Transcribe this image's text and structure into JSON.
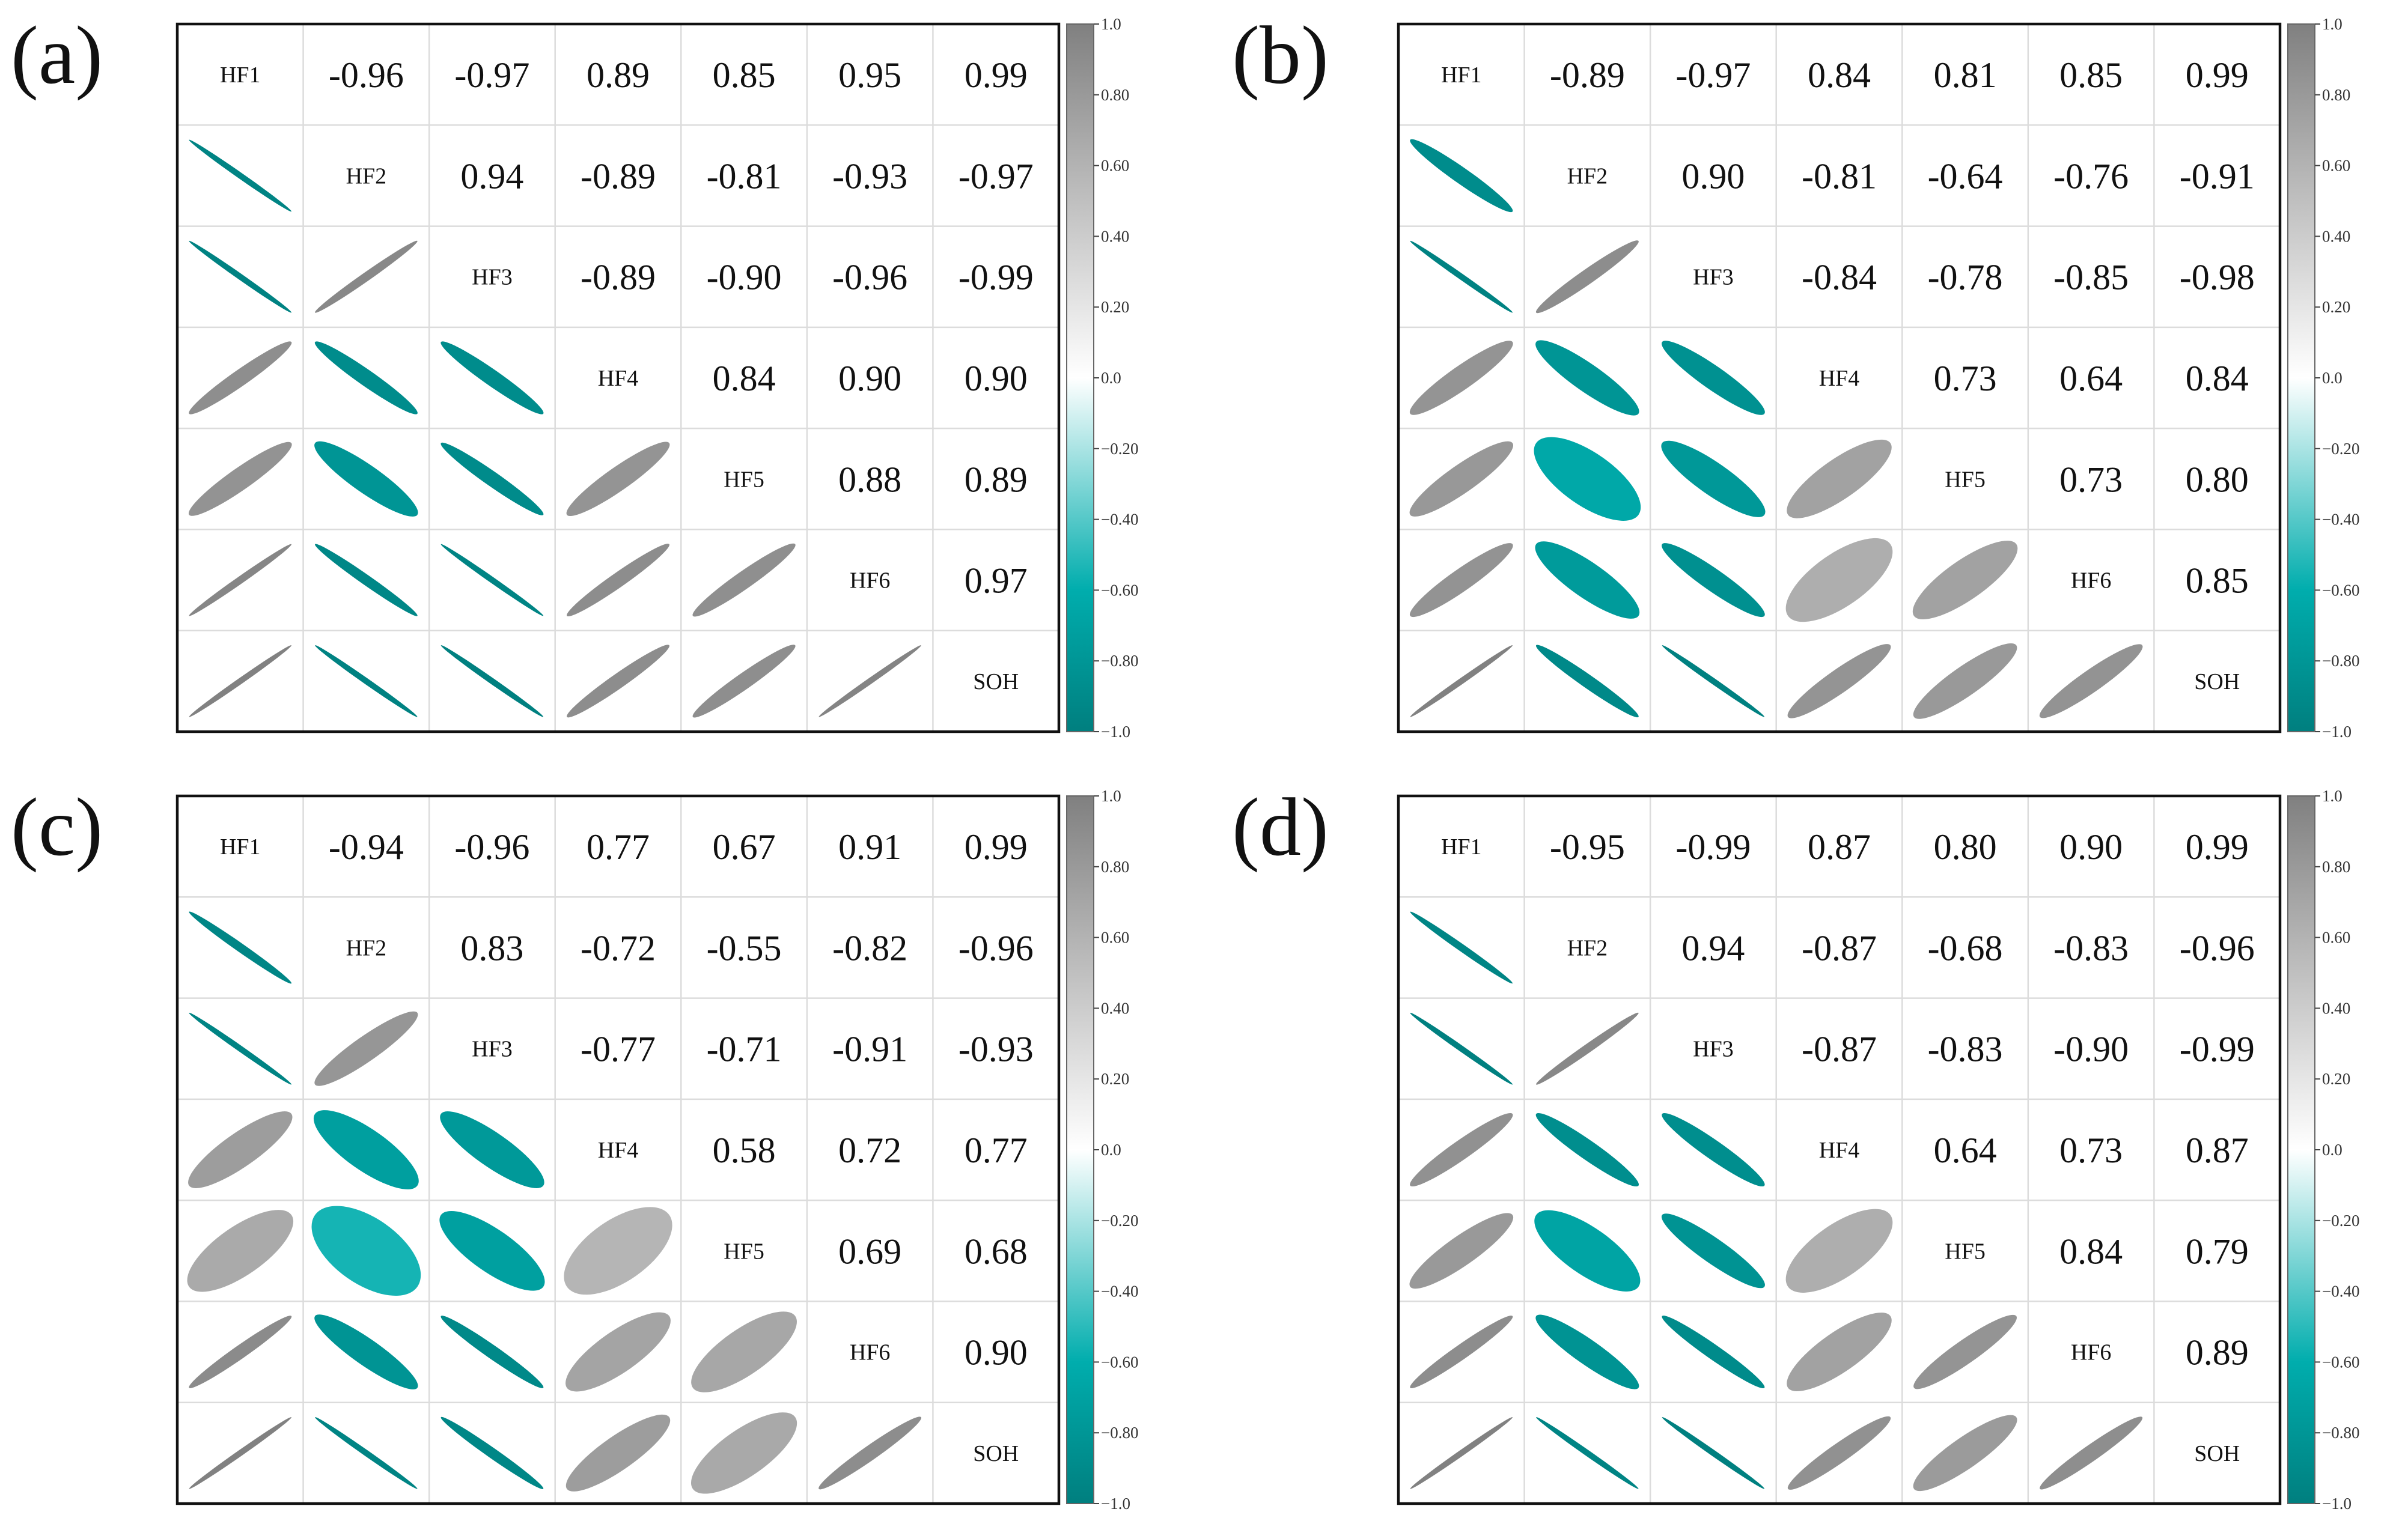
{
  "figure": {
    "description_colors": {
      "positive": "#808080",
      "neutral": "#ffffff",
      "negative": "#007f7f",
      "mid_negative": "#00adad"
    }
  },
  "chart_data": [
    {
      "type": "heatmap",
      "panel_label": "(a)",
      "variables": [
        "HF1",
        "HF2",
        "HF3",
        "HF4",
        "HF5",
        "HF6",
        "SOH"
      ],
      "matrix": [
        [
          1,
          -0.96,
          -0.97,
          0.89,
          0.85,
          0.95,
          0.99
        ],
        [
          -0.96,
          1,
          0.94,
          -0.89,
          -0.81,
          -0.93,
          -0.97
        ],
        [
          -0.97,
          0.94,
          1,
          -0.89,
          -0.9,
          -0.96,
          -0.99
        ],
        [
          0.89,
          -0.89,
          -0.89,
          1,
          0.84,
          0.9,
          0.9
        ],
        [
          0.85,
          -0.81,
          -0.9,
          0.84,
          1,
          0.88,
          0.89
        ],
        [
          0.95,
          -0.93,
          -0.96,
          0.9,
          0.88,
          1,
          0.97
        ],
        [
          0.99,
          -0.97,
          -0.99,
          0.9,
          0.89,
          0.97,
          1
        ]
      ],
      "colorbar": {
        "range": [
          -1.0,
          1.0
        ],
        "ticks": [
          "1.0",
          "0.80",
          "0.60",
          "0.40",
          "0.20",
          "0.0",
          "−0.20",
          "−0.40",
          "−0.60",
          "−0.80",
          "−1.0"
        ]
      }
    },
    {
      "type": "heatmap",
      "panel_label": "(b)",
      "variables": [
        "HF1",
        "HF2",
        "HF3",
        "HF4",
        "HF5",
        "HF6",
        "SOH"
      ],
      "matrix": [
        [
          1,
          -0.89,
          -0.97,
          0.84,
          0.81,
          0.85,
          0.99
        ],
        [
          -0.89,
          1,
          0.9,
          -0.81,
          -0.64,
          -0.76,
          -0.91
        ],
        [
          -0.97,
          0.9,
          1,
          -0.84,
          -0.78,
          -0.85,
          -0.98
        ],
        [
          0.84,
          -0.81,
          -0.84,
          1,
          0.73,
          0.64,
          0.84
        ],
        [
          0.81,
          -0.64,
          -0.78,
          0.73,
          1,
          0.73,
          0.8
        ],
        [
          0.85,
          -0.76,
          -0.85,
          0.64,
          0.73,
          1,
          0.85
        ],
        [
          0.99,
          -0.91,
          -0.98,
          0.84,
          0.8,
          0.85,
          1
        ]
      ],
      "colorbar": {
        "range": [
          -1.0,
          1.0
        ],
        "ticks": [
          "1.0",
          "0.80",
          "0.60",
          "0.40",
          "0.20",
          "0.0",
          "−0.20",
          "−0.40",
          "−0.60",
          "−0.80",
          "−1.0"
        ]
      }
    },
    {
      "type": "heatmap",
      "panel_label": "(c)",
      "variables": [
        "HF1",
        "HF2",
        "HF3",
        "HF4",
        "HF5",
        "HF6",
        "SOH"
      ],
      "matrix": [
        [
          1,
          -0.94,
          -0.96,
          0.77,
          0.67,
          0.91,
          0.99
        ],
        [
          -0.94,
          1,
          0.83,
          -0.72,
          -0.55,
          -0.82,
          -0.96
        ],
        [
          -0.96,
          0.83,
          1,
          -0.77,
          -0.71,
          -0.91,
          -0.93
        ],
        [
          0.77,
          -0.72,
          -0.77,
          1,
          0.58,
          0.72,
          0.77
        ],
        [
          0.67,
          -0.55,
          -0.71,
          0.58,
          1,
          0.69,
          0.68
        ],
        [
          0.91,
          -0.82,
          -0.91,
          0.72,
          0.69,
          1,
          0.9
        ],
        [
          0.99,
          -0.96,
          -0.93,
          0.77,
          0.68,
          0.9,
          1
        ]
      ],
      "colorbar": {
        "range": [
          -1.0,
          1.0
        ],
        "ticks": [
          "1.0",
          "0.80",
          "0.60",
          "0.40",
          "0.20",
          "0.0",
          "−0.20",
          "−0.40",
          "−0.60",
          "−0.80",
          "−1.0"
        ]
      }
    },
    {
      "type": "heatmap",
      "panel_label": "(d)",
      "variables": [
        "HF1",
        "HF2",
        "HF3",
        "HF4",
        "HF5",
        "HF6",
        "SOH"
      ],
      "matrix": [
        [
          1,
          -0.95,
          -0.99,
          0.87,
          0.8,
          0.9,
          0.99
        ],
        [
          -0.95,
          1,
          0.94,
          -0.87,
          -0.68,
          -0.83,
          -0.96
        ],
        [
          -0.99,
          0.94,
          1,
          -0.87,
          -0.83,
          -0.9,
          -0.99
        ],
        [
          0.87,
          -0.87,
          -0.87,
          1,
          0.64,
          0.73,
          0.87
        ],
        [
          0.8,
          -0.68,
          -0.83,
          0.64,
          1,
          0.84,
          0.79
        ],
        [
          0.9,
          -0.83,
          -0.9,
          0.73,
          0.84,
          1,
          0.89
        ],
        [
          0.99,
          -0.96,
          -0.99,
          0.87,
          0.79,
          0.89,
          1
        ]
      ],
      "colorbar": {
        "range": [
          -1.0,
          1.0
        ],
        "ticks": [
          "1.0",
          "0.80",
          "0.60",
          "0.40",
          "0.20",
          "0.0",
          "−0.20",
          "−0.40",
          "−0.60",
          "−0.80",
          "−1.0"
        ]
      }
    }
  ]
}
